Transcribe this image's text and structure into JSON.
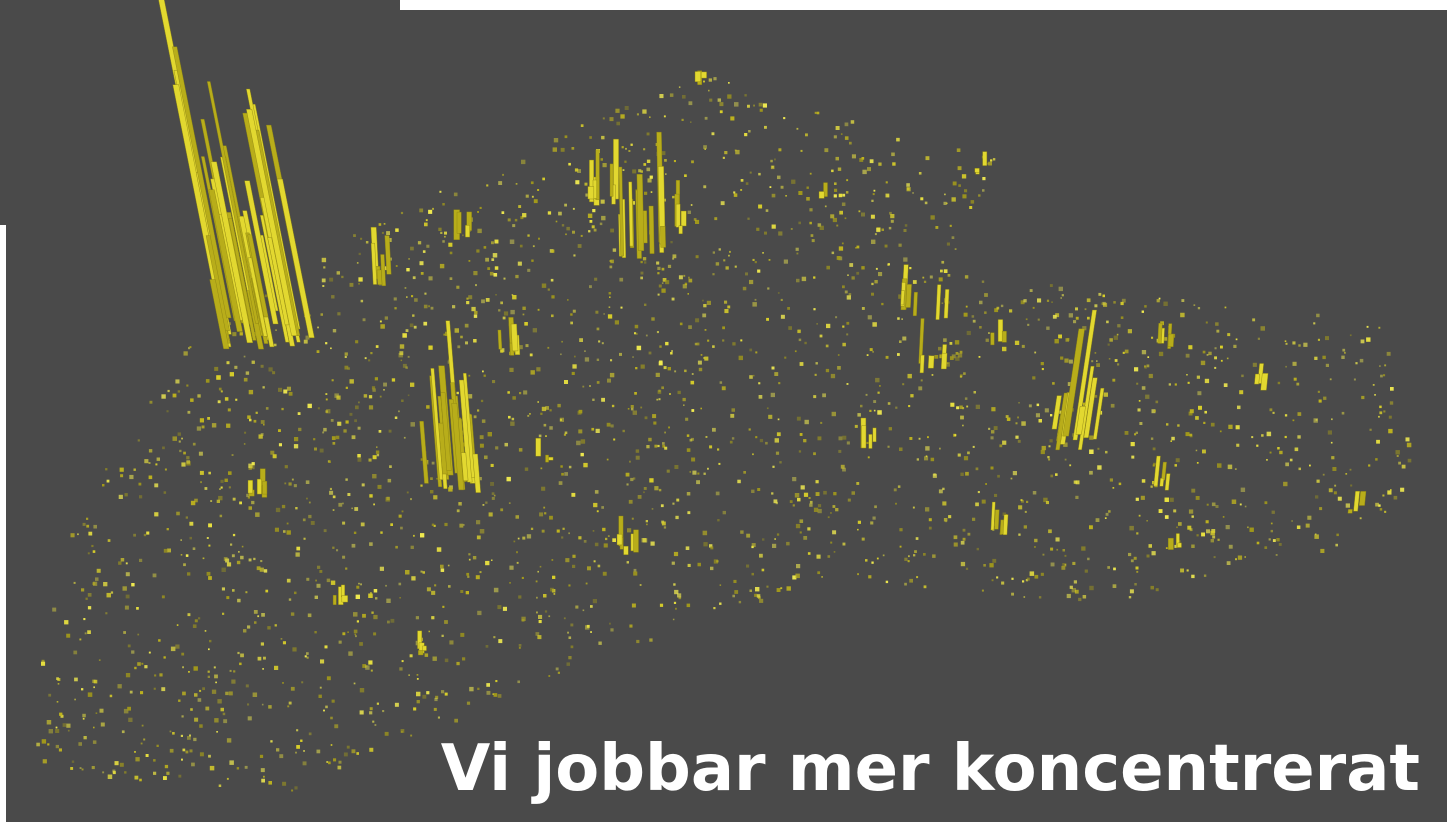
{
  "title": "Vi jobbar mer koncentrerat"
}
